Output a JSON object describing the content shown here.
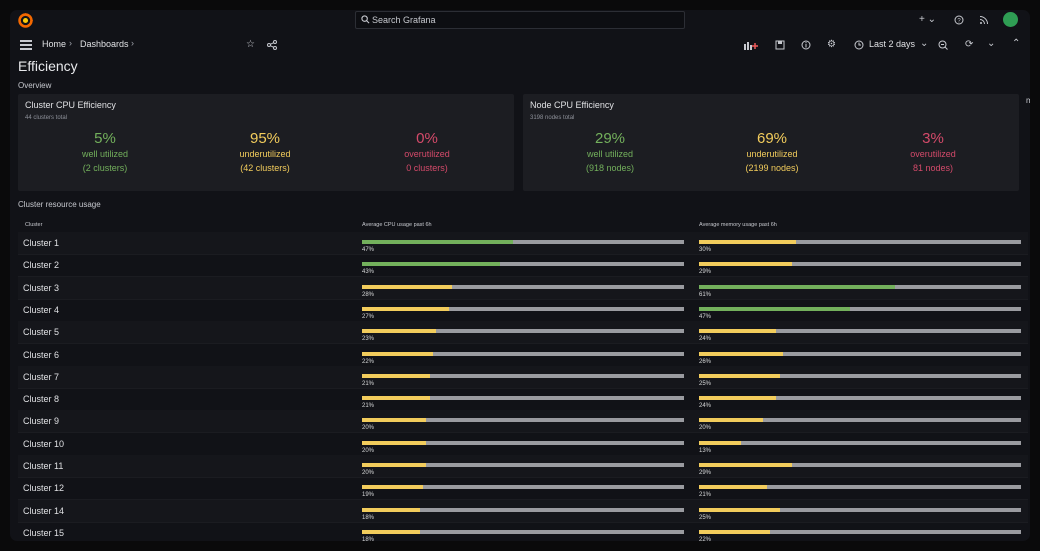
{
  "search": {
    "placeholder": "Search Grafana"
  },
  "breadcrumb": {
    "home": "Home",
    "dashboards": "Dashboards"
  },
  "toolbar": {
    "time_range": "Last 2 days"
  },
  "dashboard": {
    "title": "Efficiency",
    "overview_label": "Overview",
    "resource_label": "Cluster resource usage"
  },
  "colors": {
    "green": "#73b05c",
    "yellow": "#f2cc5c",
    "red": "#d44a6a",
    "track": "#9a9ba0"
  },
  "cluster_panel": {
    "title": "Cluster CPU Efficiency",
    "subtitle": "44 clusters total",
    "stats": [
      {
        "value": "5%",
        "label": "well utilized",
        "count": "(2 clusters)",
        "color": "green"
      },
      {
        "value": "95%",
        "label": "underutilized",
        "count": "(42 clusters)",
        "color": "yellow"
      },
      {
        "value": "0%",
        "label": "overutilized",
        "count": "0 clusters)",
        "color": "red"
      }
    ]
  },
  "node_panel": {
    "title": "Node CPU Efficiency",
    "subtitle": "3198 nodes total",
    "stats": [
      {
        "value": "29%",
        "label": "well utilized",
        "count": "(918 nodes)",
        "color": "green"
      },
      {
        "value": "69%",
        "label": "underutilized",
        "count": "(2199 nodes)",
        "color": "yellow"
      },
      {
        "value": "3%",
        "label": "overutilized",
        "count": "81 nodes)",
        "color": "red"
      }
    ]
  },
  "table": {
    "headers": {
      "cluster": "Cluster",
      "cpu": "Average CPU usage past 6h",
      "memory": "Average memory usage past 6h"
    },
    "rows": [
      {
        "name": "Cluster 1",
        "cpu": 47,
        "cpu_label": "47%",
        "cpu_color": "green",
        "mem": 30,
        "mem_label": "30%",
        "mem_color": "yellow"
      },
      {
        "name": "Cluster 2",
        "cpu": 43,
        "cpu_label": "43%",
        "cpu_color": "green",
        "mem": 29,
        "mem_label": "29%",
        "mem_color": "yellow"
      },
      {
        "name": "Cluster 3",
        "cpu": 28,
        "cpu_label": "28%",
        "cpu_color": "yellow",
        "mem": 61,
        "mem_label": "61%",
        "mem_color": "green"
      },
      {
        "name": "Cluster 4",
        "cpu": 27,
        "cpu_label": "27%",
        "cpu_color": "yellow",
        "mem": 47,
        "mem_label": "47%",
        "mem_color": "green"
      },
      {
        "name": "Cluster 5",
        "cpu": 23,
        "cpu_label": "23%",
        "cpu_color": "yellow",
        "mem": 24,
        "mem_label": "24%",
        "mem_color": "yellow"
      },
      {
        "name": "Cluster 6",
        "cpu": 22,
        "cpu_label": "22%",
        "cpu_color": "yellow",
        "mem": 26,
        "mem_label": "26%",
        "mem_color": "yellow"
      },
      {
        "name": "Cluster 7",
        "cpu": 21,
        "cpu_label": "21%",
        "cpu_color": "yellow",
        "mem": 25,
        "mem_label": "25%",
        "mem_color": "yellow"
      },
      {
        "name": "Cluster 8",
        "cpu": 21,
        "cpu_label": "21%",
        "cpu_color": "yellow",
        "mem": 24,
        "mem_label": "24%",
        "mem_color": "yellow"
      },
      {
        "name": "Cluster 9",
        "cpu": 20,
        "cpu_label": "20%",
        "cpu_color": "yellow",
        "mem": 20,
        "mem_label": "20%",
        "mem_color": "yellow"
      },
      {
        "name": "Cluster 10",
        "cpu": 20,
        "cpu_label": "20%",
        "cpu_color": "yellow",
        "mem": 13,
        "mem_label": "13%",
        "mem_color": "yellow"
      },
      {
        "name": "Cluster 11",
        "cpu": 20,
        "cpu_label": "20%",
        "cpu_color": "yellow",
        "mem": 29,
        "mem_label": "29%",
        "mem_color": "yellow"
      },
      {
        "name": "Cluster 12",
        "cpu": 19,
        "cpu_label": "19%",
        "cpu_color": "yellow",
        "mem": 21,
        "mem_label": "21%",
        "mem_color": "yellow"
      },
      {
        "name": "Cluster 14",
        "cpu": 18,
        "cpu_label": "18%",
        "cpu_color": "yellow",
        "mem": 25,
        "mem_label": "25%",
        "mem_color": "yellow"
      },
      {
        "name": "Cluster 15",
        "cpu": 18,
        "cpu_label": "18%",
        "cpu_color": "yellow",
        "mem": 22,
        "mem_label": "22%",
        "mem_color": "yellow"
      }
    ]
  }
}
